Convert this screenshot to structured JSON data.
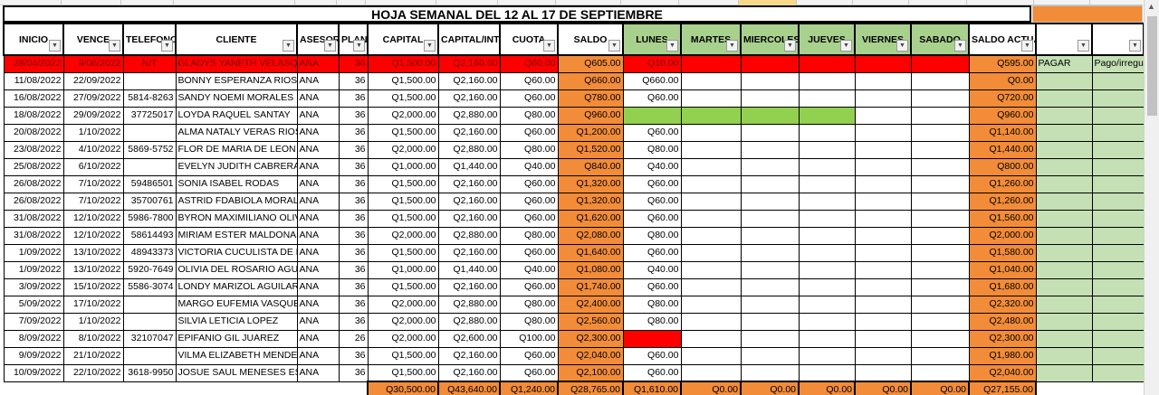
{
  "title": "HOJA SEMANAL DEL 12 AL 17 DE SEPTIEMBRE",
  "headers": {
    "inicio": "INICIO",
    "vence": "VENCE",
    "telefono": "TELEFONO",
    "cliente": "CLIENTE",
    "asesor": "ASESOR",
    "plan": "PLAN",
    "capital": "CAPITAL",
    "capital_int": "CAPITAL/INTERES",
    "cuota": "CUOTA",
    "saldo": "SALDO",
    "lunes": "LUNES",
    "martes": "MARTES",
    "miercoles": "MIERCOLES",
    "jueves": "JUEVES",
    "viernes": "VIERNES",
    "sabado": "SABADO",
    "saldo_actual": "SALDO ACTUAL"
  },
  "rows": [
    {
      "inicio": "28/04/2022",
      "vence": "9/06/2022",
      "telefono": "N/T",
      "cliente": "GLADYS YANETH VELASQUEZ",
      "asesor": "ANA",
      "plan": "36",
      "capital": "Q1,500.00",
      "capital_int": "Q2,160.00",
      "cuota": "Q60.00",
      "saldo": "Q605.00",
      "lunes": "Q10.00",
      "saldo_actual": "Q595.00",
      "extra1": "PAGAR",
      "extra2": "Pago/irregular"
    },
    {
      "inicio": "11/08/2022",
      "vence": "22/09/2022",
      "telefono": "",
      "cliente": "BONNY ESPERANZA RIOS",
      "asesor": "ANA",
      "plan": "36",
      "capital": "Q1,500.00",
      "capital_int": "Q2,160.00",
      "cuota": "Q60.00",
      "saldo": "Q660.00",
      "lunes": "Q660.00",
      "saldo_actual": "Q0.00",
      "extra1": "",
      "extra2": ""
    },
    {
      "inicio": "16/08/2022",
      "vence": "27/09/2022",
      "telefono": "5814-8263",
      "cliente": "SANDY NOEMI MORALES",
      "asesor": "ANA",
      "plan": "36",
      "capital": "Q1,500.00",
      "capital_int": "Q2,160.00",
      "cuota": "Q60.00",
      "saldo": "Q780.00",
      "lunes": "Q60.00",
      "saldo_actual": "Q720.00",
      "extra1": "",
      "extra2": ""
    },
    {
      "inicio": "18/08/2022",
      "vence": "29/09/2022",
      "telefono": "37725017",
      "cliente": "LOYDA RAQUEL SANTAY",
      "asesor": "ANA",
      "plan": "36",
      "capital": "Q2,000.00",
      "capital_int": "Q2,880.00",
      "cuota": "Q80.00",
      "saldo": "Q960.00",
      "lunes": "",
      "saldo_actual": "Q960.00",
      "extra1": "",
      "extra2": ""
    },
    {
      "inicio": "20/08/2022",
      "vence": "1/10/2022",
      "telefono": "",
      "cliente": "ALMA NATALY VERAS RIOS",
      "asesor": "ANA",
      "plan": "36",
      "capital": "Q1,500.00",
      "capital_int": "Q2,160.00",
      "cuota": "Q60.00",
      "saldo": "Q1,200.00",
      "lunes": "Q60.00",
      "saldo_actual": "Q1,140.00",
      "extra1": "",
      "extra2": ""
    },
    {
      "inicio": "23/08/2022",
      "vence": "4/10/2022",
      "telefono": "5869-5752",
      "cliente": "FLOR DE MARIA DE LEON",
      "asesor": "ANA",
      "plan": "36",
      "capital": "Q2,000.00",
      "capital_int": "Q2,880.00",
      "cuota": "Q80.00",
      "saldo": "Q1,520.00",
      "lunes": "Q80.00",
      "saldo_actual": "Q1,440.00",
      "extra1": "",
      "extra2": ""
    },
    {
      "inicio": "25/08/2022",
      "vence": "6/10/2022",
      "telefono": "",
      "cliente": "EVELYN  JUDITH CABRERA",
      "asesor": "ANA",
      "plan": "36",
      "capital": "Q1,000.00",
      "capital_int": "Q1,440.00",
      "cuota": "Q40.00",
      "saldo": "Q840.00",
      "lunes": "Q40.00",
      "saldo_actual": "Q800.00",
      "extra1": "",
      "extra2": ""
    },
    {
      "inicio": "26/08/2022",
      "vence": "7/10/2022",
      "telefono": "59486501",
      "cliente": "SONIA ISABEL RODAS",
      "asesor": "ANA",
      "plan": "36",
      "capital": "Q1,500.00",
      "capital_int": "Q2,160.00",
      "cuota": "Q60.00",
      "saldo": "Q1,320.00",
      "lunes": "Q60.00",
      "saldo_actual": "Q1,260.00",
      "extra1": "",
      "extra2": ""
    },
    {
      "inicio": "26/08/2022",
      "vence": "7/10/2022",
      "telefono": "35700761",
      "cliente": "ASTRID FDABIOLA MORALES",
      "asesor": "ANA",
      "plan": "36",
      "capital": "Q1,500.00",
      "capital_int": "Q2,160.00",
      "cuota": "Q60.00",
      "saldo": "Q1,320.00",
      "lunes": "Q60.00",
      "saldo_actual": "Q1,260.00",
      "extra1": "",
      "extra2": ""
    },
    {
      "inicio": "31/08/2022",
      "vence": "12/10/2022",
      "telefono": "5986-7800",
      "cliente": "BYRON MAXIMILIANO OLIVA",
      "asesor": "ANA",
      "plan": "36",
      "capital": "Q1,500.00",
      "capital_int": "Q2,160.00",
      "cuota": "Q60.00",
      "saldo": "Q1,620.00",
      "lunes": "Q60.00",
      "saldo_actual": "Q1,560.00",
      "extra1": "",
      "extra2": ""
    },
    {
      "inicio": "31/08/2022",
      "vence": "12/10/2022",
      "telefono": "58614493",
      "cliente": "MIRIAM ESTER MALDONADO",
      "asesor": "ANA",
      "plan": "36",
      "capital": "Q2,000.00",
      "capital_int": "Q2,880.00",
      "cuota": "Q80.00",
      "saldo": "Q2,080.00",
      "lunes": "Q80.00",
      "saldo_actual": "Q2,000.00",
      "extra1": "",
      "extra2": ""
    },
    {
      "inicio": "1/09/2022",
      "vence": "13/10/2022",
      "telefono": "48943373",
      "cliente": "VICTORIA CUCULISTA DE LEON",
      "asesor": "ANA",
      "plan": "36",
      "capital": "Q1,500.00",
      "capital_int": "Q2,160.00",
      "cuota": "Q60.00",
      "saldo": "Q1,640.00",
      "lunes": "Q60.00",
      "saldo_actual": "Q1,580.00",
      "extra1": "",
      "extra2": ""
    },
    {
      "inicio": "1/09/2022",
      "vence": "13/10/2022",
      "telefono": "5920-7649",
      "cliente": "OLIVIA DEL ROSARIO AGUILAR",
      "asesor": "ANA",
      "plan": "36",
      "capital": "Q1,000.00",
      "capital_int": "Q1,440.00",
      "cuota": "Q40.00",
      "saldo": "Q1,080.00",
      "lunes": "Q40.00",
      "saldo_actual": "Q1,040.00",
      "extra1": "",
      "extra2": ""
    },
    {
      "inicio": "3/09/2022",
      "vence": "15/10/2022",
      "telefono": "5586-3074",
      "cliente": "LONDY MARIZOL AGUILAR",
      "asesor": "ANA",
      "plan": "36",
      "capital": "Q1,500.00",
      "capital_int": "Q2,160.00",
      "cuota": "Q60.00",
      "saldo": "Q1,740.00",
      "lunes": "Q60.00",
      "saldo_actual": "Q1,680.00",
      "extra1": "",
      "extra2": ""
    },
    {
      "inicio": "5/09/2022",
      "vence": "17/10/2022",
      "telefono": "",
      "cliente": "MARGO EUFEMIA VASQUEZ",
      "asesor": "ANA",
      "plan": "36",
      "capital": "Q2,000.00",
      "capital_int": "Q2,880.00",
      "cuota": "Q80.00",
      "saldo": "Q2,400.00",
      "lunes": "Q80.00",
      "saldo_actual": "Q2,320.00",
      "extra1": "",
      "extra2": ""
    },
    {
      "inicio": "7/09/2022",
      "vence": "1/10/2022",
      "telefono": "",
      "cliente": "SILVIA LETICIA LOPEZ",
      "asesor": "ANA",
      "plan": "36",
      "capital": "Q2,000.00",
      "capital_int": "Q2,880.00",
      "cuota": "Q80.00",
      "saldo": "Q2,560.00",
      "lunes": "Q80.00",
      "saldo_actual": "Q2,480.00",
      "extra1": "",
      "extra2": ""
    },
    {
      "inicio": "8/09/2022",
      "vence": "8/10/2022",
      "telefono": "32107047",
      "cliente": "EPIFANIO GIL JUAREZ",
      "asesor": "ANA",
      "plan": "26",
      "capital": "Q2,000.00",
      "capital_int": "Q2,600.00",
      "cuota": "Q100.00",
      "saldo": "Q2,300.00",
      "lunes": "",
      "saldo_actual": "Q2,300.00",
      "extra1": "",
      "extra2": ""
    },
    {
      "inicio": "9/09/2022",
      "vence": "21/10/2022",
      "telefono": "",
      "cliente": "VILMA ELIZABETH MENDEZ",
      "asesor": "ANA",
      "plan": "36",
      "capital": "Q1,500.00",
      "capital_int": "Q2,160.00",
      "cuota": "Q60.00",
      "saldo": "Q2,040.00",
      "lunes": "Q60.00",
      "saldo_actual": "Q1,980.00",
      "extra1": "",
      "extra2": ""
    },
    {
      "inicio": "10/09/2022",
      "vence": "22/10/2022",
      "telefono": "3618-9950",
      "cliente": "JOSUE SAUL MENESES ESTRADA",
      "asesor": "ANA",
      "plan": "36",
      "capital": "Q1,500.00",
      "capital_int": "Q2,160.00",
      "cuota": "Q60.00",
      "saldo": "Q2,100.00",
      "lunes": "Q60.00",
      "saldo_actual": "Q2,040.00",
      "extra1": "",
      "extra2": ""
    }
  ],
  "totals": {
    "capital": "Q30,500.00",
    "capital_int": "Q43,640.00",
    "cuota": "Q1,240.00",
    "saldo": "Q28,765.00",
    "lunes": "Q1,610.00",
    "martes": "Q0.00",
    "miercoles": "Q0.00",
    "jueves": "Q0.00",
    "viernes": "Q0.00",
    "sabado": "Q0.00",
    "saldo_actual": "Q27,155.00"
  },
  "colors": {
    "orange": "#f28c38",
    "green_header": "#a9d18e",
    "light_green": "#c5e0b4",
    "red": "#ff0000",
    "bright_green": "#92d050"
  }
}
